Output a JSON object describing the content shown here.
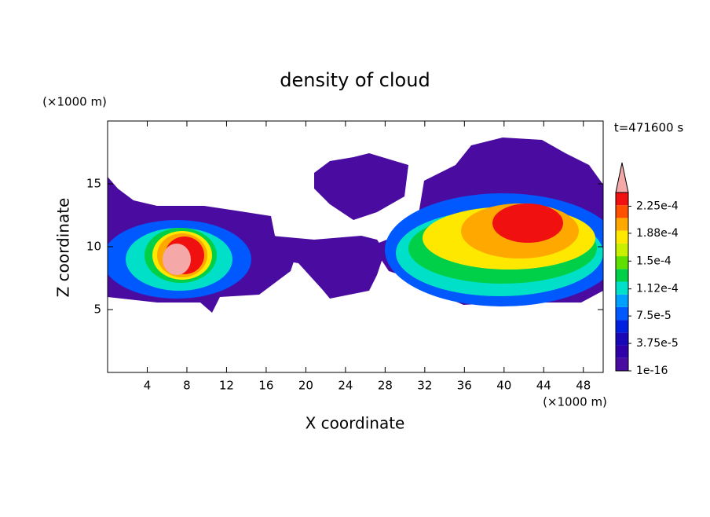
{
  "chart_data": {
    "type": "contour",
    "title": "density of cloud",
    "x_label": "X coordinate",
    "y_label": "Z coordinate",
    "x_unit_label": "(×1000 m)",
    "y_unit_label": "(×1000 m)",
    "annotation": "t=471600 s",
    "xlim": [
      0,
      50
    ],
    "ylim": [
      0,
      20
    ],
    "xticks": [
      4,
      8,
      12,
      16,
      20,
      24,
      28,
      32,
      36,
      40,
      44,
      48
    ],
    "yticks": [
      5,
      10,
      15
    ],
    "colorbar": {
      "lim": [
        1e-16,
        0.00024375
      ],
      "colors": [
        "#4a0ca0",
        "#3000a8",
        "#1808b8",
        "#0020e0",
        "#0058ff",
        "#00a0ff",
        "#00e0c8",
        "#00d048",
        "#60e000",
        "#c8f000",
        "#ffe800",
        "#ffa800",
        "#ff5000",
        "#f01010"
      ],
      "extend_color": "#f4a8a8",
      "ticks": [
        {
          "value": 1e-16,
          "label": "1e-16"
        },
        {
          "value": 3.75e-05,
          "label": "3.75e-5"
        },
        {
          "value": 7.5e-05,
          "label": "7.5e-5"
        },
        {
          "value": 0.000112,
          "label": "1.12e-4"
        },
        {
          "value": 0.00015,
          "label": "1.5e-4"
        },
        {
          "value": 0.000188,
          "label": "1.88e-4"
        },
        {
          "value": 0.000225,
          "label": "2.25e-4"
        }
      ]
    }
  }
}
